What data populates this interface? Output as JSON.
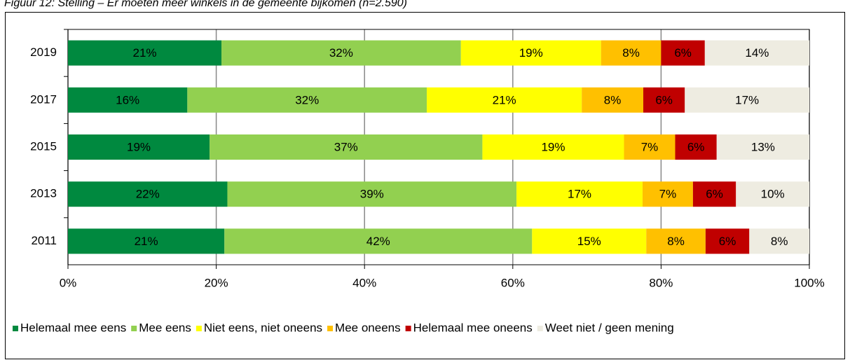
{
  "chart_data": {
    "type": "stacked-bar-horizontal",
    "title": "Figuur 12: Stelling – Er moeten meer winkels in de gemeente bijkomen (n=2.590)",
    "categories": [
      "2019",
      "2017",
      "2015",
      "2013",
      "2011"
    ],
    "series": [
      {
        "name": "Helemaal mee eens",
        "color": "#00893f",
        "values": [
          20.7,
          16.1,
          19.1,
          21.5,
          21.1
        ],
        "value_labels": [
          "21%",
          "16%",
          "19%",
          "22%",
          "21%"
        ]
      },
      {
        "name": "Mee eens",
        "color": "#92d050",
        "values": [
          32.3,
          32.3,
          36.8,
          39.0,
          41.5
        ],
        "value_labels": [
          "32%",
          "32%",
          "37%",
          "39%",
          "42%"
        ]
      },
      {
        "name": "Niet eens, niet oneens",
        "color": "#ffff00",
        "values": [
          18.9,
          20.9,
          19.1,
          17.0,
          15.4
        ],
        "value_labels": [
          "19%",
          "21%",
          "19%",
          "17%",
          "15%"
        ]
      },
      {
        "name": "Mee oneens",
        "color": "#ffc000",
        "values": [
          8.1,
          8.3,
          6.9,
          6.8,
          8.0
        ],
        "value_labels": [
          "8%",
          "8%",
          "7%",
          "7%",
          "8%"
        ]
      },
      {
        "name": "Helemaal mee oneens",
        "color": "#c00000",
        "values": [
          5.9,
          5.6,
          5.6,
          5.8,
          5.9
        ],
        "value_labels": [
          "6%",
          "6%",
          "6%",
          "6%",
          "6%"
        ]
      },
      {
        "name": "Weet niet / geen mening",
        "color": "#eeece1",
        "values": [
          14.1,
          16.8,
          12.5,
          9.9,
          8.1
        ],
        "value_labels": [
          "14%",
          "17%",
          "13%",
          "10%",
          "8%"
        ]
      }
    ],
    "xlim": [
      0,
      100
    ],
    "xticks": [
      {
        "value": 0,
        "label": "0%"
      },
      {
        "value": 20,
        "label": "20%"
      },
      {
        "value": 40,
        "label": "40%"
      },
      {
        "value": 60,
        "label": "60%"
      },
      {
        "value": 80,
        "label": "80%"
      },
      {
        "value": 100,
        "label": "100%"
      }
    ],
    "grid": true,
    "legend": "bottom"
  }
}
